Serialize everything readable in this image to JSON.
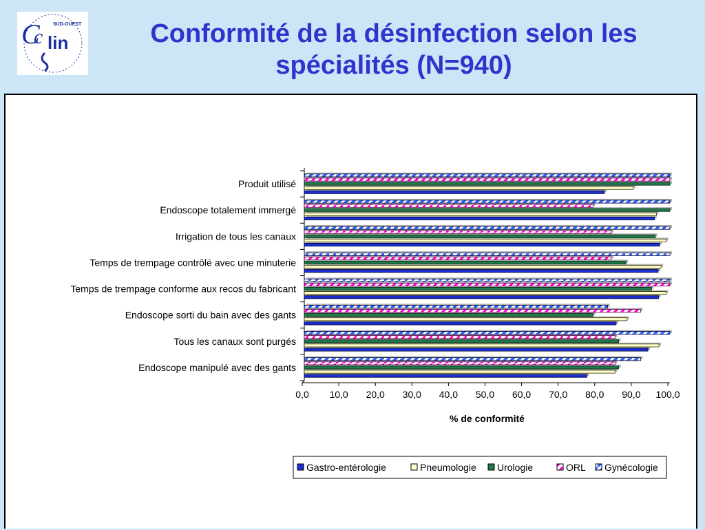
{
  "logo": {
    "main_text": "CClin",
    "ring_text": "SUD-OUEST"
  },
  "slide_title": {
    "line1": "Conformité de la désinfection selon les",
    "line2": "spécialités (N=940)"
  },
  "colors": {
    "background": "#cce6f8",
    "title": "#3333cc",
    "gastro": "#1a2fd4",
    "pneumo": "#ffffcc",
    "urologie": "#1f7a4a",
    "orl": "#ff00cc",
    "gyneco": "#3366ff"
  },
  "chart_data": {
    "type": "bar",
    "orientation": "horizontal",
    "categories": [
      "Produit utilisé",
      "Endoscope totalement immergé",
      "Irrigation de tous les canaux",
      "Temps de trempage contrôlé avec une minuterie",
      "Temps de trempage conforme aux recos du fabricant",
      "Endoscope sorti du bain avec des gants",
      "Tous les canaux sont purgés",
      "Endoscope manipulé avec des gants"
    ],
    "series": [
      {
        "name": "Gastro-entérologie",
        "values": [
          82.1,
          95.8,
          97.2,
          96.8,
          96.9,
          85.3,
          94.0,
          77.3
        ]
      },
      {
        "name": "Pneumologie",
        "values": [
          90.0,
          96.3,
          99.0,
          97.6,
          99.0,
          88.3,
          97.0,
          85.0
        ]
      },
      {
        "name": "Urologie",
        "values": [
          100.0,
          100.0,
          96.0,
          88.0,
          95.0,
          79.0,
          86.0,
          86.0
        ]
      },
      {
        "name": "ORL",
        "values": [
          100.0,
          79.0,
          84.0,
          84.0,
          100.0,
          92.0,
          85.0,
          85.0
        ]
      },
      {
        "name": "Gynécologie",
        "values": [
          100.0,
          100.0,
          100.0,
          100.0,
          100.0,
          83.0,
          100.0,
          92.0
        ]
      }
    ],
    "xlim": [
      0,
      100
    ],
    "xticks": [
      "0,0",
      "10,0",
      "20,0",
      "30,0",
      "40,0",
      "50,0",
      "60,0",
      "70,0",
      "80,0",
      "90,0",
      "100,0"
    ],
    "xlabel": "% de conformité",
    "ylabel": "",
    "grid": false,
    "legend_position": "bottom-right"
  }
}
